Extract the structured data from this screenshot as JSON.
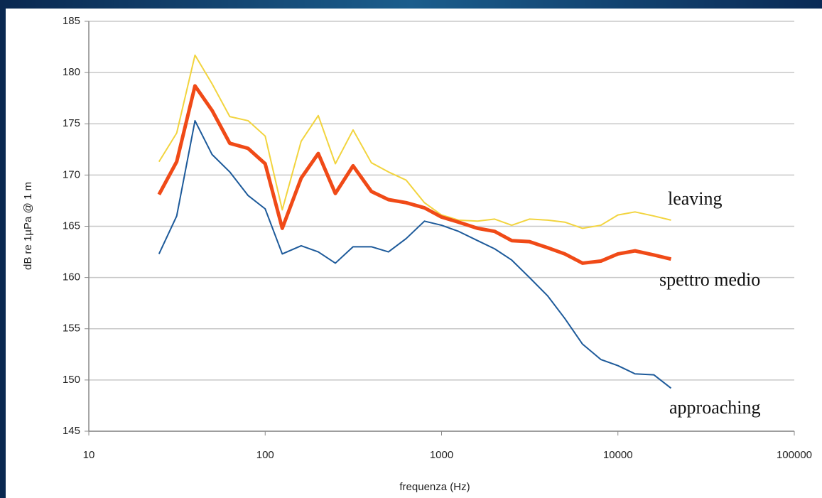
{
  "chart_data": {
    "type": "line",
    "x_label": "frequenza (Hz)",
    "y_label": "dB re 1µPa @ 1 m",
    "x": [
      25,
      31.5,
      40,
      50,
      63,
      80,
      100,
      125,
      160,
      200,
      250,
      315,
      400,
      500,
      630,
      800,
      1000,
      1250,
      1600,
      2000,
      2500,
      3150,
      4000,
      5000,
      6300,
      8000,
      10000,
      12500,
      16000,
      20000
    ],
    "series": [
      {
        "name": "leaving",
        "color": "#f2d43e",
        "width": 2,
        "values": [
          171.3,
          174.1,
          181.7,
          178.9,
          175.7,
          175.3,
          173.8,
          166.6,
          173.3,
          175.8,
          171.1,
          174.4,
          171.2,
          170.3,
          169.5,
          167.3,
          166.1,
          165.6,
          165.5,
          165.7,
          165.1,
          165.7,
          165.6,
          165.4,
          164.8,
          165.1,
          166.1,
          166.4,
          166.0,
          165.6
        ]
      },
      {
        "name": "spettro medio",
        "color": "#f04a17",
        "width": 5,
        "values": [
          168.1,
          171.3,
          178.7,
          176.3,
          173.1,
          172.6,
          171.1,
          164.8,
          169.7,
          172.1,
          168.2,
          170.9,
          168.4,
          167.6,
          167.3,
          166.8,
          165.9,
          165.4,
          164.8,
          164.5,
          163.6,
          163.5,
          162.9,
          162.3,
          161.4,
          161.6,
          162.3,
          162.6,
          162.2,
          161.8
        ]
      },
      {
        "name": "approaching",
        "color": "#1d5a9a",
        "width": 2,
        "values": [
          162.3,
          166.0,
          175.3,
          172.0,
          170.3,
          168.0,
          166.7,
          162.3,
          163.1,
          162.5,
          161.4,
          163.0,
          163.0,
          162.5,
          163.8,
          165.5,
          165.1,
          164.5,
          163.6,
          162.8,
          161.7,
          160.0,
          158.2,
          156.0,
          153.5,
          152.0,
          151.4,
          150.6,
          150.5,
          149.2
        ]
      }
    ],
    "xscale": "log",
    "xlim": [
      10,
      100000
    ],
    "xticks": [
      10,
      100,
      1000,
      10000,
      100000
    ],
    "ylim": [
      145,
      185
    ],
    "yticks": [
      145,
      150,
      155,
      160,
      165,
      170,
      175,
      180,
      185
    ],
    "grid": true
  }
}
